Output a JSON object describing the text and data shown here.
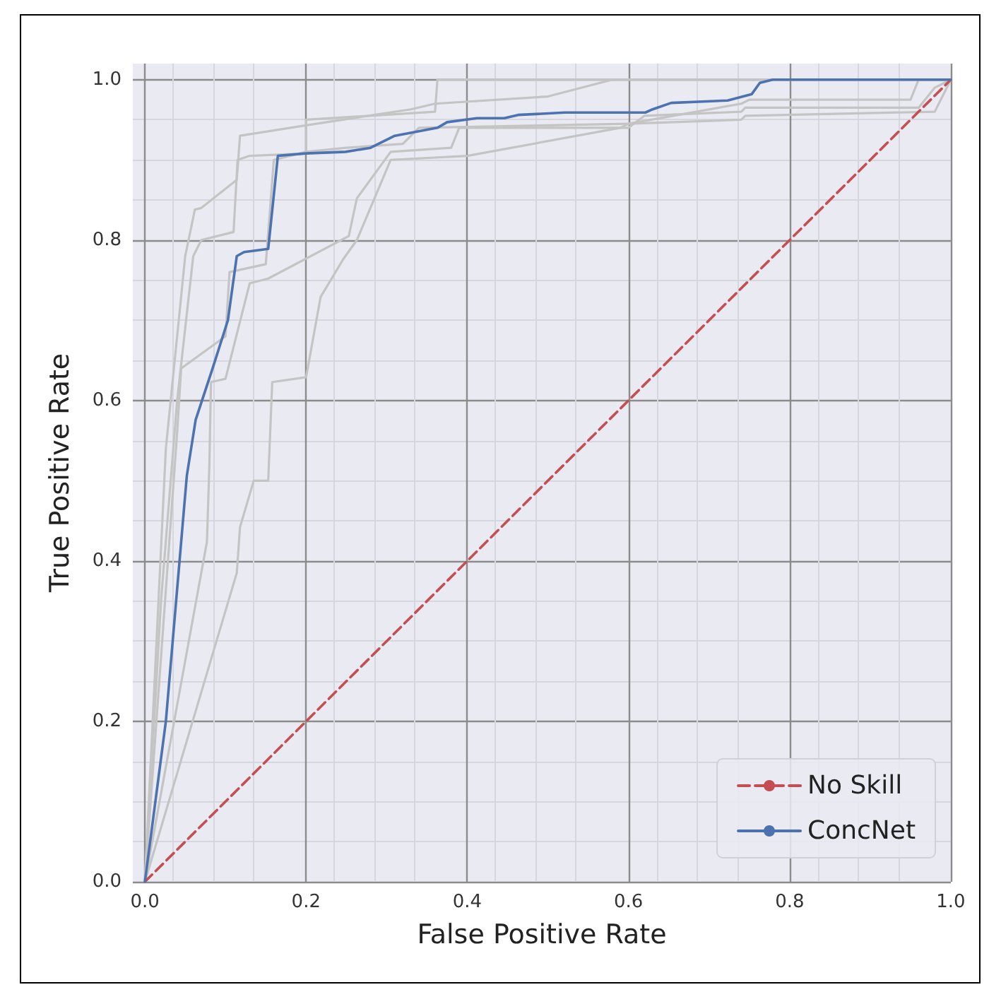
{
  "chart_data": {
    "type": "line",
    "xlabel": "False Positive Rate",
    "ylabel": "True Positive Rate",
    "xlim": [
      -0.015,
      1.0
    ],
    "ylim": [
      0,
      1.02
    ],
    "xticks": [
      {
        "value": 0,
        "label": "0.0"
      },
      {
        "value": 0.2,
        "label": "0.2"
      },
      {
        "value": 0.4,
        "label": "0.4"
      },
      {
        "value": 0.6,
        "label": "0.6"
      },
      {
        "value": 0.8,
        "label": "0.8"
      },
      {
        "value": 1,
        "label": "1.0"
      }
    ],
    "yticks": [
      {
        "value": 0,
        "label": "0.0"
      },
      {
        "value": 0.2,
        "label": "0.2"
      },
      {
        "value": 0.4,
        "label": "0.4"
      },
      {
        "value": 0.6,
        "label": "0.6"
      },
      {
        "value": 0.8,
        "label": "0.8"
      },
      {
        "value": 1,
        "label": "1.0"
      }
    ],
    "grid": true,
    "legend": "bottom right",
    "marker": "none",
    "line_style": "solid",
    "series": [
      {
        "color": "#c4c4c4",
        "x": [
          0,
          0.026,
          0.05,
          0.062,
          0.07,
          0.114,
          0.118,
          0.2,
          0.33,
          0.36,
          0.5,
          0.58,
          1
        ],
        "values": [
          0,
          0.54,
          0.78,
          0.838,
          0.84,
          0.875,
          0.93,
          0.943,
          0.963,
          0.97,
          0.979,
          1,
          1
        ]
      },
      {
        "color": "#c4c4c4",
        "x": [
          0,
          0.02,
          0.04,
          0.06,
          0.07,
          0.11,
          0.115,
          0.13,
          0.2,
          0.2,
          0.36,
          0.363,
          1
        ],
        "values": [
          0,
          0.35,
          0.6,
          0.78,
          0.8,
          0.81,
          0.9,
          0.905,
          0.908,
          0.95,
          0.96,
          1,
          1
        ]
      },
      {
        "color": "#c4c4c4",
        "x": [
          0,
          0.077,
          0.08,
          0.082,
          0.1,
          0.13,
          0.153,
          0.253,
          0.263,
          0.305,
          0.38,
          0.39,
          0.6,
          0.62,
          0.74,
          0.745,
          0.96,
          0.98,
          1
        ],
        "values": [
          0,
          0.424,
          0.52,
          0.623,
          0.627,
          0.746,
          0.752,
          0.805,
          0.852,
          0.91,
          0.915,
          0.94,
          0.94,
          0.955,
          0.96,
          0.965,
          0.965,
          0.99,
          1
        ]
      },
      {
        "color": "#c4c4c4",
        "x": [
          0,
          0.114,
          0.118,
          0.135,
          0.153,
          0.158,
          0.2,
          0.218,
          0.246,
          0.263,
          0.305,
          0.4,
          0.59,
          0.6,
          0.74,
          0.75,
          0.95,
          0.96,
          1
        ],
        "values": [
          0,
          0.385,
          0.442,
          0.5,
          0.5,
          0.623,
          0.629,
          0.729,
          0.776,
          0.8,
          0.9,
          0.905,
          0.94,
          0.945,
          0.97,
          0.975,
          0.975,
          1,
          1
        ]
      },
      {
        "color": "#c4c4c4",
        "x": [
          0,
          0.04,
          0.045,
          0.1,
          0.105,
          0.15,
          0.16,
          0.2,
          0.25,
          0.32,
          0.34,
          0.6,
          0.74,
          0.745,
          0.98,
          1
        ],
        "values": [
          0,
          0.56,
          0.64,
          0.68,
          0.76,
          0.77,
          0.9,
          0.91,
          0.915,
          0.92,
          0.94,
          0.945,
          0.95,
          0.955,
          0.96,
          1
        ]
      },
      {
        "name": "No Skill",
        "color": "#c44e52",
        "line_style": "dashed",
        "x": [
          0,
          1
        ],
        "values": [
          0,
          1
        ]
      },
      {
        "name": "ConcNet",
        "color": "#4c72b0",
        "x": [
          0,
          0.026,
          0.052,
          0.063,
          0.084,
          0.103,
          0.114,
          0.123,
          0.153,
          0.165,
          0.2,
          0.249,
          0.28,
          0.31,
          0.363,
          0.375,
          0.412,
          0.446,
          0.463,
          0.521,
          0.621,
          0.63,
          0.653,
          0.723,
          0.753,
          0.763,
          0.779,
          1
        ],
        "values": [
          0,
          0.2,
          0.506,
          0.576,
          0.64,
          0.7,
          0.78,
          0.785,
          0.789,
          0.905,
          0.908,
          0.91,
          0.915,
          0.93,
          0.94,
          0.947,
          0.952,
          0.952,
          0.956,
          0.959,
          0.959,
          0.963,
          0.971,
          0.974,
          0.982,
          0.996,
          1,
          1
        ]
      }
    ]
  }
}
